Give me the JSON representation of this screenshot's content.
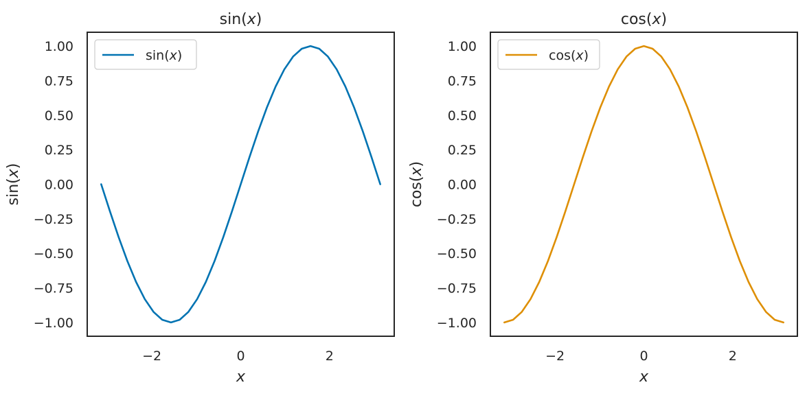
{
  "chart_data": [
    {
      "type": "line",
      "title": {
        "pre": "sin(",
        "var": "x",
        "post": ")"
      },
      "xlabel": "x",
      "ylabel": {
        "pre": "sin(",
        "var": "x",
        "post": ")"
      },
      "xlim": [
        -3.456,
        3.456
      ],
      "ylim": [
        -1.1,
        1.1
      ],
      "xticks": [
        {
          "value": -2,
          "label": "−2"
        },
        {
          "value": 0,
          "label": "0"
        },
        {
          "value": 2,
          "label": "2"
        }
      ],
      "yticks": [
        {
          "value": 1.0,
          "label": "1.00"
        },
        {
          "value": 0.75,
          "label": "0.75"
        },
        {
          "value": 0.5,
          "label": "0.50"
        },
        {
          "value": 0.25,
          "label": "0.25"
        },
        {
          "value": 0.0,
          "label": "0.00"
        },
        {
          "value": -0.25,
          "label": "−0.25"
        },
        {
          "value": -0.5,
          "label": "−0.50"
        },
        {
          "value": -0.75,
          "label": "−0.75"
        },
        {
          "value": -1.0,
          "label": "−1.00"
        }
      ],
      "grid": false,
      "legend_position": "upper-left",
      "series": [
        {
          "name": {
            "pre": "sin(",
            "var": "x",
            "post": ")"
          },
          "color": "#0173b2",
          "x": [
            -3.1416,
            -2.9452,
            -2.7489,
            -2.5525,
            -2.3562,
            -2.1598,
            -1.9635,
            -1.7671,
            -1.5708,
            -1.3744,
            -1.1781,
            -0.9817,
            -0.7854,
            -0.589,
            -0.3927,
            -0.1963,
            0.0,
            0.1963,
            0.3927,
            0.589,
            0.7854,
            0.9817,
            1.1781,
            1.3744,
            1.5708,
            1.7671,
            1.9635,
            2.1598,
            2.3562,
            2.5525,
            2.7489,
            2.9452,
            3.1416
          ],
          "y": [
            0.0,
            -0.1951,
            -0.3827,
            -0.5556,
            -0.7071,
            -0.8315,
            -0.9239,
            -0.9808,
            -1.0,
            -0.9808,
            -0.9239,
            -0.8315,
            -0.7071,
            -0.5556,
            -0.3827,
            -0.1951,
            0.0,
            0.1951,
            0.3827,
            0.5556,
            0.7071,
            0.8315,
            0.9239,
            0.9808,
            1.0,
            0.9808,
            0.9239,
            0.8315,
            0.7071,
            0.5556,
            0.3827,
            0.1951,
            0.0
          ]
        }
      ]
    },
    {
      "type": "line",
      "title": {
        "pre": "cos(",
        "var": "x",
        "post": ")"
      },
      "xlabel": "x",
      "ylabel": {
        "pre": "cos(",
        "var": "x",
        "post": ")"
      },
      "xlim": [
        -3.456,
        3.456
      ],
      "ylim": [
        -1.1,
        1.1
      ],
      "xticks": [
        {
          "value": -2,
          "label": "−2"
        },
        {
          "value": 0,
          "label": "0"
        },
        {
          "value": 2,
          "label": "2"
        }
      ],
      "yticks": [
        {
          "value": 1.0,
          "label": "1.00"
        },
        {
          "value": 0.75,
          "label": "0.75"
        },
        {
          "value": 0.5,
          "label": "0.50"
        },
        {
          "value": 0.25,
          "label": "0.25"
        },
        {
          "value": 0.0,
          "label": "0.00"
        },
        {
          "value": -0.25,
          "label": "−0.25"
        },
        {
          "value": -0.5,
          "label": "−0.50"
        },
        {
          "value": -0.75,
          "label": "−0.75"
        },
        {
          "value": -1.0,
          "label": "−1.00"
        }
      ],
      "grid": false,
      "legend_position": "upper-left",
      "series": [
        {
          "name": {
            "pre": "cos(",
            "var": "x",
            "post": ")"
          },
          "color": "#de8f05",
          "x": [
            -3.1416,
            -2.9452,
            -2.7489,
            -2.5525,
            -2.3562,
            -2.1598,
            -1.9635,
            -1.7671,
            -1.5708,
            -1.3744,
            -1.1781,
            -0.9817,
            -0.7854,
            -0.589,
            -0.3927,
            -0.1963,
            0.0,
            0.1963,
            0.3927,
            0.589,
            0.7854,
            0.9817,
            1.1781,
            1.3744,
            1.5708,
            1.7671,
            1.9635,
            2.1598,
            2.3562,
            2.5525,
            2.7489,
            2.9452,
            3.1416
          ],
          "y": [
            -1.0,
            -0.9808,
            -0.9239,
            -0.8315,
            -0.7071,
            -0.5556,
            -0.3827,
            -0.1951,
            0.0,
            0.1951,
            0.3827,
            0.5556,
            0.7071,
            0.8315,
            0.9239,
            0.9808,
            1.0,
            0.9808,
            0.9239,
            0.8315,
            0.7071,
            0.5556,
            0.3827,
            0.1951,
            0.0,
            -0.1951,
            -0.3827,
            -0.5556,
            -0.7071,
            -0.8315,
            -0.9239,
            -0.9808,
            -1.0
          ]
        }
      ]
    }
  ]
}
